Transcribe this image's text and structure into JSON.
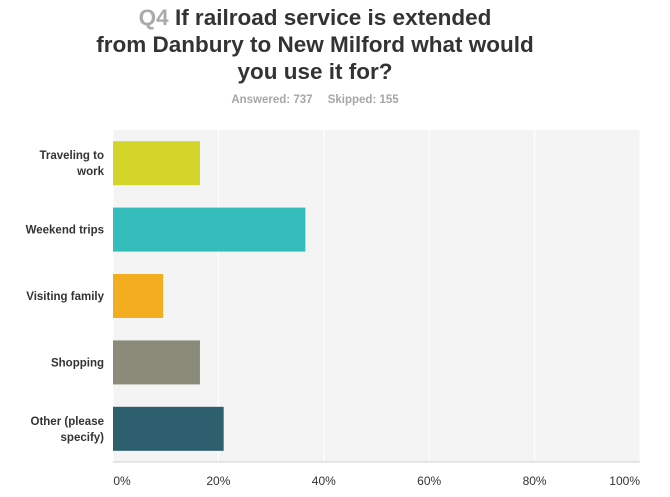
{
  "header": {
    "question_number": "Q4",
    "question_text_line1": "If railroad service is extended",
    "question_text_line2": "from Danbury to New Milford what would",
    "question_text_line3": "you use it for?",
    "answered_label": "Answered: 737",
    "skipped_label": "Skipped: 155"
  },
  "chart_data": {
    "type": "bar",
    "orientation": "horizontal",
    "categories": [
      [
        "Traveling to",
        "work"
      ],
      [
        "Weekend trips"
      ],
      [
        "Visiting family"
      ],
      [
        "Shopping"
      ],
      [
        "Other (please",
        "specify)"
      ]
    ],
    "values": [
      16.5,
      36.5,
      9.5,
      16.5,
      21
    ],
    "colors": [
      "#d3d42a",
      "#35bdbb",
      "#f4ac20",
      "#8b8b7a",
      "#2d5f6e"
    ],
    "xlim": [
      0,
      100
    ],
    "xticks": [
      "0%",
      "20%",
      "40%",
      "60%",
      "80%",
      "100%"
    ],
    "grid": true
  }
}
